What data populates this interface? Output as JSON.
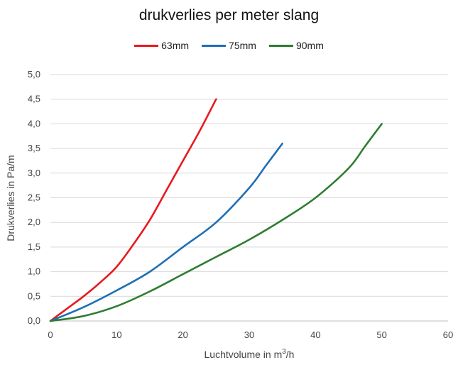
{
  "chart_data": {
    "type": "line",
    "title": "drukverlies per meter slang",
    "xlabel_pre": "Luchtvolume in m",
    "xlabel_sup": "3",
    "xlabel_post": "/h",
    "ylabel": "Drukverlies in Pa/m",
    "xlim": [
      0,
      60
    ],
    "ylim": [
      0,
      5
    ],
    "x_ticks": [
      "0",
      "10",
      "20",
      "30",
      "40",
      "50",
      "60"
    ],
    "y_ticks": [
      "0,0",
      "0,5",
      "1,0",
      "1,5",
      "2,0",
      "2,5",
      "3,0",
      "3,5",
      "4,0",
      "4,5",
      "5,0"
    ],
    "grid": "horizontal",
    "legend_position": "top",
    "series": [
      {
        "name": "63mm",
        "color": "#e8191e",
        "x": [
          0,
          2.5,
          5,
          7.5,
          10,
          12.5,
          15,
          17.5,
          20,
          22.5,
          25
        ],
        "y": [
          0,
          0.25,
          0.5,
          0.78,
          1.1,
          1.55,
          2.05,
          2.65,
          3.25,
          3.85,
          4.5
        ]
      },
      {
        "name": "75mm",
        "color": "#1f6fb5",
        "x": [
          0,
          5,
          10,
          15,
          20,
          25,
          30,
          32.5,
          35
        ],
        "y": [
          0,
          0.28,
          0.62,
          1.0,
          1.5,
          2.0,
          2.7,
          3.15,
          3.6
        ]
      },
      {
        "name": "90mm",
        "color": "#2e7d32",
        "x": [
          0,
          5,
          10,
          15,
          20,
          25,
          30,
          35,
          40,
          45,
          47.5,
          50
        ],
        "y": [
          0,
          0.1,
          0.3,
          0.6,
          0.95,
          1.3,
          1.65,
          2.05,
          2.5,
          3.1,
          3.55,
          4.0
        ]
      }
    ]
  }
}
